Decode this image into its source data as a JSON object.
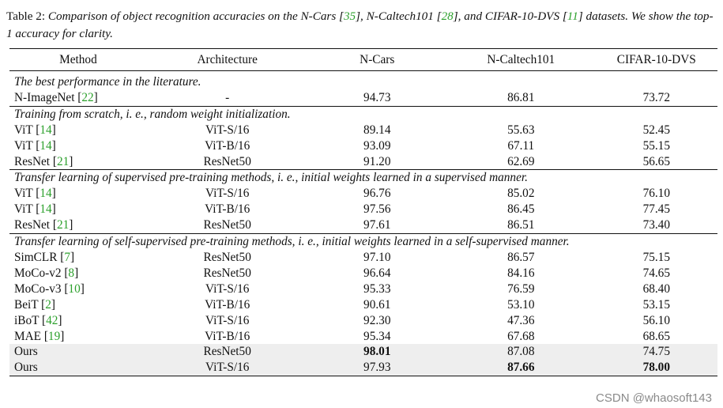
{
  "caption": {
    "lead": "Table 2:",
    "text_1": " Comparison of object recognition accuracies on the N-Cars [",
    "ref_1": "35",
    "text_2": "], N-Caltech101 [",
    "ref_2": "28",
    "text_3": "], and CIFAR-10-DVS [",
    "ref_3": "11",
    "text_4": "] datasets. We show the top-1 accuracy for clarity."
  },
  "headers": [
    "Method",
    "Architecture",
    "N-Cars",
    "N-Caltech101",
    "CIFAR-10-DVS"
  ],
  "sections": [
    {
      "title": "The best performance in the literature.",
      "rows": [
        {
          "method": "N-ImageNet",
          "ref": "22",
          "arch": "-",
          "ncars": "94.73",
          "ncaltech": "86.81",
          "cifar": "73.72"
        }
      ]
    },
    {
      "title": "Training from scratch, i. e., random weight initialization.",
      "rows": [
        {
          "method": "ViT",
          "ref": "14",
          "arch": "ViT-S/16",
          "ncars": "89.14",
          "ncaltech": "55.63",
          "cifar": "52.45"
        },
        {
          "method": "ViT",
          "ref": "14",
          "arch": "ViT-B/16",
          "ncars": "93.09",
          "ncaltech": "67.11",
          "cifar": "55.15"
        },
        {
          "method": "ResNet",
          "ref": "21",
          "arch": "ResNet50",
          "ncars": "91.20",
          "ncaltech": "62.69",
          "cifar": "56.65"
        }
      ]
    },
    {
      "title": "Transfer learning of supervised pre-training methods, i. e., initial weights learned in a supervised manner.",
      "rows": [
        {
          "method": "ViT",
          "ref": "14",
          "arch": "ViT-S/16",
          "ncars": "96.76",
          "ncaltech": "85.02",
          "cifar": "76.10"
        },
        {
          "method": "ViT",
          "ref": "14",
          "arch": "ViT-B/16",
          "ncars": "97.56",
          "ncaltech": "86.45",
          "cifar": "77.45"
        },
        {
          "method": "ResNet",
          "ref": "21",
          "arch": "ResNet50",
          "ncars": "97.61",
          "ncaltech": "86.51",
          "cifar": "73.40"
        }
      ]
    },
    {
      "title": "Transfer learning of self-supervised pre-training methods, i. e., initial weights learned in a self-supervised manner.",
      "rows": [
        {
          "method": "SimCLR",
          "ref": "7",
          "arch": "ResNet50",
          "ncars": "97.10",
          "ncaltech": "86.57",
          "cifar": "75.15"
        },
        {
          "method": "MoCo-v2",
          "ref": "8",
          "arch": "ResNet50",
          "ncars": "96.64",
          "ncaltech": "84.16",
          "cifar": "74.65"
        },
        {
          "method": "MoCo-v3",
          "ref": "10",
          "arch": "ViT-S/16",
          "ncars": "95.33",
          "ncaltech": "76.59",
          "cifar": "68.40"
        },
        {
          "method": "BeiT",
          "ref": "2",
          "arch": "ViT-B/16",
          "ncars": "90.61",
          "ncaltech": "53.10",
          "cifar": "53.15"
        },
        {
          "method": "iBoT",
          "ref": "42",
          "arch": "ViT-S/16",
          "ncars": "92.30",
          "ncaltech": "47.36",
          "cifar": "56.10"
        },
        {
          "method": "MAE",
          "ref": "19",
          "arch": "ViT-B/16",
          "ncars": "95.34",
          "ncaltech": "67.68",
          "cifar": "68.65"
        },
        {
          "method": "Ours",
          "ref": "",
          "arch": "ResNet50",
          "ncars": "98.01",
          "ncaltech": "87.08",
          "cifar": "74.75"
        },
        {
          "method": "Ours",
          "ref": "",
          "arch": "ViT-S/16",
          "ncars": "97.93",
          "ncaltech": "87.66",
          "cifar": "78.00"
        }
      ]
    }
  ],
  "watermark": "CSDN @whaosoft143"
}
